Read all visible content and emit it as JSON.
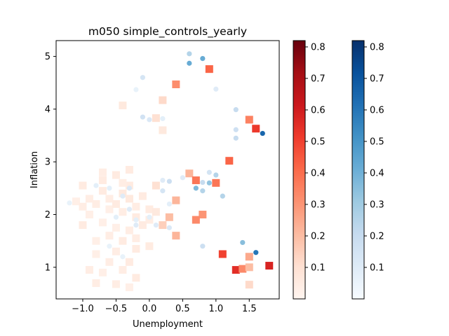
{
  "chart_data": {
    "type": "scatter",
    "title": "m050 simple_controls_yearly",
    "xlabel": "Unemployment",
    "ylabel": "Inflation",
    "xlim": [
      -1.4,
      1.95
    ],
    "ylim": [
      0.4,
      5.3
    ],
    "xticks": [
      "−1.0",
      "−0.5",
      "0.0",
      "0.5",
      "1.0",
      "1.5"
    ],
    "xtick_values": [
      -1.0,
      -0.5,
      0.0,
      0.5,
      1.0,
      1.5
    ],
    "yticks": [
      "1",
      "2",
      "3",
      "4",
      "5"
    ],
    "ytick_values": [
      1,
      2,
      3,
      4,
      5
    ],
    "grid": false,
    "colorbars": [
      {
        "cmap": "Reds",
        "range": [
          0.0,
          0.82
        ],
        "ticks": [
          "0.1",
          "0.2",
          "0.3",
          "0.4",
          "0.5",
          "0.6",
          "0.7",
          "0.8"
        ],
        "tick_values": [
          0.1,
          0.2,
          0.3,
          0.4,
          0.5,
          0.6,
          0.7,
          0.8
        ]
      },
      {
        "cmap": "Blues",
        "range": [
          0.0,
          0.82
        ],
        "ticks": [
          "0.1",
          "0.2",
          "0.3",
          "0.4",
          "0.5",
          "0.6",
          "0.7",
          "0.8"
        ],
        "tick_values": [
          0.1,
          0.2,
          0.3,
          0.4,
          0.5,
          0.6,
          0.7,
          0.8
        ]
      }
    ],
    "series": [
      {
        "marker": "square",
        "cmap": "Reds",
        "points": [
          {
            "x": 0.9,
            "y": 4.76,
            "v": 0.42
          },
          {
            "x": 0.4,
            "y": 4.47,
            "v": 0.32
          },
          {
            "x": 0.2,
            "y": 4.17,
            "v": 0.12
          },
          {
            "x": -0.4,
            "y": 4.07,
            "v": 0.06
          },
          {
            "x": 0.1,
            "y": 3.83,
            "v": 0.1
          },
          {
            "x": 0.2,
            "y": 3.6,
            "v": 0.06
          },
          {
            "x": 1.5,
            "y": 3.8,
            "v": 0.35
          },
          {
            "x": 1.6,
            "y": 3.63,
            "v": 0.52
          },
          {
            "x": 1.2,
            "y": 3.02,
            "v": 0.42
          },
          {
            "x": 0.6,
            "y": 2.78,
            "v": 0.22
          },
          {
            "x": 0.7,
            "y": 2.65,
            "v": 0.38
          },
          {
            "x": 1.0,
            "y": 2.6,
            "v": 0.38
          },
          {
            "x": 0.1,
            "y": 2.55,
            "v": 0.1
          },
          {
            "x": 0.4,
            "y": 2.27,
            "v": 0.22
          },
          {
            "x": 0.8,
            "y": 2.0,
            "v": 0.3
          },
          {
            "x": 0.7,
            "y": 1.9,
            "v": 0.33
          },
          {
            "x": 0.3,
            "y": 1.95,
            "v": 0.2
          },
          {
            "x": 0.2,
            "y": 1.8,
            "v": 0.15
          },
          {
            "x": 0.4,
            "y": 1.6,
            "v": 0.22
          },
          {
            "x": 1.1,
            "y": 1.25,
            "v": 0.5
          },
          {
            "x": 1.3,
            "y": 0.95,
            "v": 0.55
          },
          {
            "x": 1.4,
            "y": 0.97,
            "v": 0.33
          },
          {
            "x": 1.5,
            "y": 1.2,
            "v": 0.25
          },
          {
            "x": 1.5,
            "y": 1.0,
            "v": 0.2
          },
          {
            "x": 1.8,
            "y": 1.03,
            "v": 0.58
          },
          {
            "x": 1.5,
            "y": 0.67,
            "v": 0.12
          },
          {
            "x": -1.1,
            "y": 2.25,
            "v": 0.03
          },
          {
            "x": -1.0,
            "y": 2.15,
            "v": 0.04
          },
          {
            "x": -0.9,
            "y": 2.3,
            "v": 0.04
          },
          {
            "x": -0.9,
            "y": 2.0,
            "v": 0.03
          },
          {
            "x": -0.8,
            "y": 2.2,
            "v": 0.04
          },
          {
            "x": -0.7,
            "y": 2.45,
            "v": 0.05
          },
          {
            "x": -0.6,
            "y": 2.3,
            "v": 0.04
          },
          {
            "x": -0.6,
            "y": 2.1,
            "v": 0.03
          },
          {
            "x": -0.5,
            "y": 2.2,
            "v": 0.05
          },
          {
            "x": -0.4,
            "y": 2.4,
            "v": 0.06
          },
          {
            "x": -0.4,
            "y": 2.05,
            "v": 0.04
          },
          {
            "x": -0.3,
            "y": 2.55,
            "v": 0.05
          },
          {
            "x": -0.3,
            "y": 2.3,
            "v": 0.06
          },
          {
            "x": -0.2,
            "y": 2.15,
            "v": 0.04
          },
          {
            "x": -0.2,
            "y": 1.95,
            "v": 0.05
          },
          {
            "x": -0.1,
            "y": 2.35,
            "v": 0.05
          },
          {
            "x": 0.0,
            "y": 2.1,
            "v": 0.05
          },
          {
            "x": 0.1,
            "y": 2.05,
            "v": 0.06
          },
          {
            "x": 0.0,
            "y": 1.9,
            "v": 0.04
          },
          {
            "x": -0.1,
            "y": 1.8,
            "v": 0.05
          },
          {
            "x": -0.3,
            "y": 1.7,
            "v": 0.04
          },
          {
            "x": -0.5,
            "y": 1.75,
            "v": 0.03
          },
          {
            "x": -0.7,
            "y": 1.85,
            "v": 0.03
          },
          {
            "x": -1.0,
            "y": 1.8,
            "v": 0.05
          },
          {
            "x": -0.8,
            "y": 1.5,
            "v": 0.03
          },
          {
            "x": -0.6,
            "y": 1.6,
            "v": 0.04
          },
          {
            "x": -0.4,
            "y": 1.5,
            "v": 0.05
          },
          {
            "x": -0.2,
            "y": 1.55,
            "v": 0.04
          },
          {
            "x": -0.2,
            "y": 1.35,
            "v": 0.05
          },
          {
            "x": 0.0,
            "y": 1.4,
            "v": 0.05
          },
          {
            "x": -0.5,
            "y": 1.3,
            "v": 0.04
          },
          {
            "x": -0.8,
            "y": 1.25,
            "v": 0.03
          },
          {
            "x": -0.6,
            "y": 1.1,
            "v": 0.04
          },
          {
            "x": -0.3,
            "y": 1.1,
            "v": 0.05
          },
          {
            "x": -0.4,
            "y": 0.95,
            "v": 0.04
          },
          {
            "x": -0.7,
            "y": 0.9,
            "v": 0.03
          },
          {
            "x": -0.9,
            "y": 0.95,
            "v": 0.04
          },
          {
            "x": -0.8,
            "y": 0.7,
            "v": 0.04
          },
          {
            "x": -0.5,
            "y": 0.68,
            "v": 0.04
          },
          {
            "x": -0.3,
            "y": 0.62,
            "v": 0.03
          },
          {
            "x": -0.2,
            "y": 0.8,
            "v": 0.05
          },
          {
            "x": -1.0,
            "y": 2.55,
            "v": 0.05
          },
          {
            "x": -0.7,
            "y": 2.65,
            "v": 0.05
          },
          {
            "x": -0.5,
            "y": 2.75,
            "v": 0.05
          },
          {
            "x": -0.4,
            "y": 2.6,
            "v": 0.04
          },
          {
            "x": -0.7,
            "y": 2.8,
            "v": 0.04
          },
          {
            "x": -0.3,
            "y": 2.85,
            "v": 0.05
          }
        ]
      },
      {
        "marker": "circle",
        "cmap": "Blues",
        "points": [
          {
            "x": 0.6,
            "y": 5.05,
            "v": 0.25
          },
          {
            "x": 0.8,
            "y": 4.96,
            "v": 0.42
          },
          {
            "x": 0.6,
            "y": 4.87,
            "v": 0.42
          },
          {
            "x": -0.1,
            "y": 4.6,
            "v": 0.14
          },
          {
            "x": -0.2,
            "y": 4.37,
            "v": 0.06
          },
          {
            "x": 1.0,
            "y": 4.38,
            "v": 0.1
          },
          {
            "x": -0.1,
            "y": 3.85,
            "v": 0.16
          },
          {
            "x": 0.0,
            "y": 3.8,
            "v": 0.12
          },
          {
            "x": 0.2,
            "y": 3.82,
            "v": 0.08
          },
          {
            "x": 1.3,
            "y": 3.99,
            "v": 0.2
          },
          {
            "x": 1.3,
            "y": 3.61,
            "v": 0.17
          },
          {
            "x": 1.3,
            "y": 3.45,
            "v": 0.2
          },
          {
            "x": 1.7,
            "y": 3.54,
            "v": 0.65
          },
          {
            "x": 1.0,
            "y": 2.75,
            "v": 0.25
          },
          {
            "x": 0.9,
            "y": 2.8,
            "v": 0.15
          },
          {
            "x": 0.9,
            "y": 2.6,
            "v": 0.33
          },
          {
            "x": 0.8,
            "y": 2.61,
            "v": 0.2
          },
          {
            "x": 0.7,
            "y": 2.5,
            "v": 0.37
          },
          {
            "x": 0.8,
            "y": 2.45,
            "v": 0.25
          },
          {
            "x": 1.1,
            "y": 2.35,
            "v": 0.25
          },
          {
            "x": 0.5,
            "y": 2.7,
            "v": 0.1
          },
          {
            "x": 0.3,
            "y": 2.63,
            "v": 0.18
          },
          {
            "x": 0.2,
            "y": 2.65,
            "v": 0.1
          },
          {
            "x": 0.2,
            "y": 2.45,
            "v": 0.14
          },
          {
            "x": 0.3,
            "y": 2.2,
            "v": 0.08
          },
          {
            "x": -0.3,
            "y": 2.5,
            "v": 0.12
          },
          {
            "x": -0.4,
            "y": 2.35,
            "v": 0.1
          },
          {
            "x": -0.6,
            "y": 2.5,
            "v": 0.08
          },
          {
            "x": -0.8,
            "y": 2.55,
            "v": 0.08
          },
          {
            "x": -1.2,
            "y": 2.22,
            "v": 0.06
          },
          {
            "x": -0.3,
            "y": 2.1,
            "v": 0.1
          },
          {
            "x": -0.5,
            "y": 1.95,
            "v": 0.08
          },
          {
            "x": -0.2,
            "y": 1.9,
            "v": 0.08
          },
          {
            "x": -0.2,
            "y": 1.8,
            "v": 0.1
          },
          {
            "x": 0.0,
            "y": 1.95,
            "v": 0.08
          },
          {
            "x": 0.1,
            "y": 1.8,
            "v": 0.1
          },
          {
            "x": 0.3,
            "y": 1.75,
            "v": 0.12
          },
          {
            "x": 0.8,
            "y": 1.4,
            "v": 0.18
          },
          {
            "x": 1.4,
            "y": 1.47,
            "v": 0.35
          },
          {
            "x": 1.6,
            "y": 1.28,
            "v": 0.6
          },
          {
            "x": -0.6,
            "y": 1.4,
            "v": 0.06
          },
          {
            "x": -0.4,
            "y": 1.2,
            "v": 0.06
          }
        ]
      }
    ]
  }
}
